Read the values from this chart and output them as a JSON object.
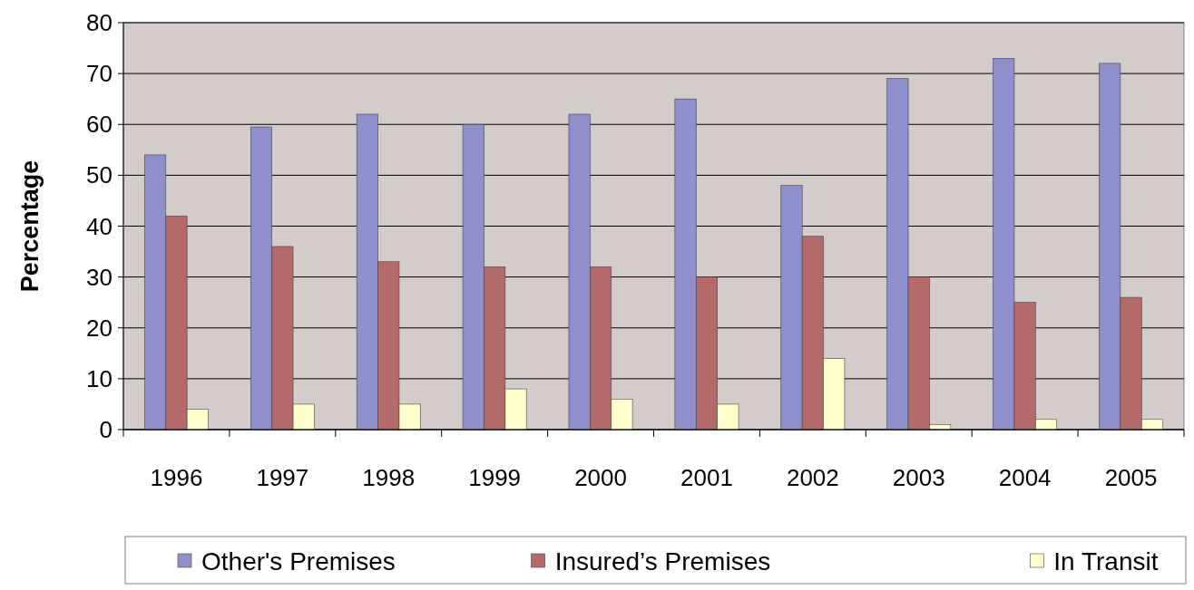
{
  "chart_data": {
    "type": "bar",
    "ylabel": "Percentage",
    "categories": [
      "1996",
      "1997",
      "1998",
      "1999",
      "2000",
      "2001",
      "2002",
      "2003",
      "2004",
      "2005"
    ],
    "series": [
      {
        "name": "Other's Premises",
        "color": "#8f8fcb",
        "values": [
          54,
          59.5,
          62,
          60,
          62,
          65,
          48,
          69,
          73,
          72
        ]
      },
      {
        "name": "Insured’s Premises",
        "color": "#b56a6a",
        "values": [
          42,
          36,
          33,
          32,
          32,
          30,
          38,
          30,
          25,
          26
        ]
      },
      {
        "name": "In Transit",
        "color": "#ffffcc",
        "values": [
          4,
          5,
          5,
          8,
          6,
          5,
          14,
          1,
          2,
          2
        ]
      }
    ],
    "ylim": [
      0,
      80
    ],
    "yticks": [
      0,
      10,
      20,
      30,
      40,
      50,
      60,
      70,
      80
    ],
    "grid": "y",
    "legend": "bottom"
  }
}
